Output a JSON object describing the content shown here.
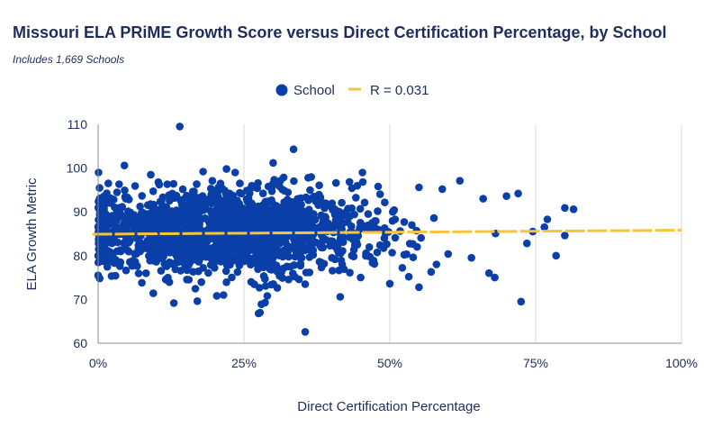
{
  "title": "Missouri ELA PRiME Growth Score versus Direct Certification Percentage, by School",
  "subtitle": "Includes 1,669 Schools",
  "colors": {
    "points": "#0b3fa8",
    "trend": "#f9c43a",
    "text": "#1f2d5a",
    "grid": "#d9d9d9",
    "axis": "#8c8c8c"
  },
  "chart_data": {
    "type": "scatter",
    "xlabel": "Direct Certification Percentage",
    "ylabel": "ELA Growth Metric",
    "xlim": [
      0,
      1
    ],
    "ylim": [
      60,
      110
    ],
    "x_ticks": [
      0,
      0.25,
      0.5,
      0.75,
      1.0
    ],
    "x_tick_labels": [
      "0%",
      "25%",
      "50%",
      "75%",
      "100%"
    ],
    "y_ticks": [
      60,
      70,
      80,
      90,
      100,
      110
    ],
    "y_tick_labels": [
      "60",
      "70",
      "80",
      "90",
      "100",
      "110"
    ],
    "grid": "vertical",
    "legend": {
      "position": "top-center",
      "entries": [
        "School",
        "R = 0.031"
      ]
    },
    "series": [
      {
        "name": "School",
        "kind": "points",
        "note_count": 1669,
        "highlighted_points": [
          [
            0.14,
            109.5
          ],
          [
            0.335,
            104.3
          ],
          [
            0.045,
            100.6
          ],
          [
            0.3,
            101.2
          ],
          [
            0.22,
            99.8
          ],
          [
            0.18,
            99.2
          ],
          [
            0.36,
            97.8
          ],
          [
            0.31,
            96.6
          ],
          [
            0.62,
            97.1
          ],
          [
            0.55,
            95.6
          ],
          [
            0.59,
            95.2
          ],
          [
            0.72,
            94.2
          ],
          [
            0.66,
            93.0
          ],
          [
            0.7,
            93.6
          ],
          [
            0.8,
            90.9
          ],
          [
            0.815,
            90.6
          ],
          [
            0.8,
            84.6
          ],
          [
            0.785,
            80.0
          ],
          [
            0.67,
            76.0
          ],
          [
            0.68,
            75.0
          ],
          [
            0.725,
            69.5
          ],
          [
            0.355,
            62.6
          ],
          [
            0.275,
            66.8
          ],
          [
            0.28,
            68.9
          ],
          [
            0.215,
            71.0
          ],
          [
            0.17,
            69.6
          ],
          [
            0.415,
            70.6
          ],
          [
            0.0,
            75.5
          ],
          [
            0.0,
            86.6
          ],
          [
            0.0,
            80.0
          ],
          [
            0.55,
            72.8
          ],
          [
            0.5,
            73.6
          ],
          [
            0.45,
            75.0
          ],
          [
            0.355,
            73.5
          ],
          [
            0.29,
            70.8
          ],
          [
            0.075,
            73.8
          ],
          [
            0.735,
            82.8
          ],
          [
            0.745,
            85.5
          ],
          [
            0.765,
            86.5
          ],
          [
            0.77,
            88.3
          ],
          [
            0.64,
            79.5
          ],
          [
            0.6,
            80.4
          ],
          [
            0.58,
            78.0
          ],
          [
            0.54,
            79.6
          ],
          [
            0.455,
            86.8
          ],
          [
            0.435,
            95.4
          ],
          [
            0.48,
            95.8
          ],
          [
            0.425,
            89.2
          ],
          [
            0.37,
            93.5
          ],
          [
            0.4,
            91.2
          ]
        ],
        "cluster_model": {
          "x_mean": 0.22,
          "x_sd": 0.13,
          "y_mean": 85.5,
          "y_sd": 4.8,
          "n": 1619,
          "x_max": 0.82
        }
      },
      {
        "name": "R = 0.031",
        "kind": "trendline",
        "points": [
          [
            -0.01,
            84.9
          ],
          [
            1.0,
            85.8
          ]
        ]
      }
    ]
  }
}
